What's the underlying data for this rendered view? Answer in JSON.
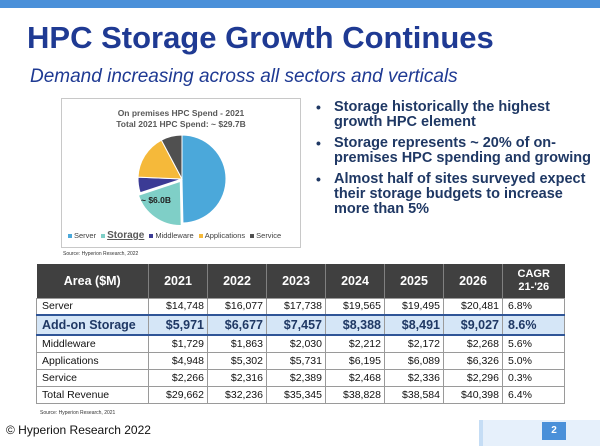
{
  "slide": {
    "title": "HPC Storage Growth Continues",
    "subtitle": "Demand increasing across all sectors and verticals"
  },
  "chart_data": {
    "type": "pie",
    "title": "On premises HPC Spend - 2021",
    "subtitle": "Total 2021 HPC Spend: ~ $29.7B",
    "categories": [
      "Server",
      "Storage",
      "Middleware",
      "Applications",
      "Service"
    ],
    "values": [
      14.7,
      6.0,
      1.7,
      4.9,
      2.3
    ],
    "colors": [
      "#4ba8da",
      "#7fcfc7",
      "#3b3b95",
      "#f5b93a",
      "#505050"
    ],
    "annotation": "~ $6.0B",
    "legend_position": "bottom"
  },
  "source_chart": "Source: Hyperion Research, 2022",
  "bullets": [
    "Storage historically the highest growth HPC element",
    "Storage represents ~ 20% of on-premises HPC spending and growing",
    "Almost half of sites surveyed expect their storage budgets to increase more than 5%"
  ],
  "table": {
    "headers": [
      "Area ($M)",
      "2021",
      "2022",
      "2023",
      "2024",
      "2025",
      "2026"
    ],
    "cagr_header": [
      "CAGR",
      "21-'26"
    ],
    "rows": [
      {
        "area": "Server",
        "values": [
          "$14,748",
          "$16,077",
          "$17,738",
          "$19,565",
          "$19,495",
          "$20,481"
        ],
        "cagr": "6.8%",
        "highlight": false
      },
      {
        "area": "Add-on Storage",
        "values": [
          "$5,971",
          "$6,677",
          "$7,457",
          "$8,388",
          "$8,491",
          "$9,027"
        ],
        "cagr": "8.6%",
        "highlight": true
      },
      {
        "area": "Middleware",
        "values": [
          "$1,729",
          "$1,863",
          "$2,030",
          "$2,212",
          "$2,172",
          "$2,268"
        ],
        "cagr": "5.6%",
        "highlight": false
      },
      {
        "area": "Applications",
        "values": [
          "$4,948",
          "$5,302",
          "$5,731",
          "$6,195",
          "$6,089",
          "$6,326"
        ],
        "cagr": "5.0%",
        "highlight": false
      },
      {
        "area": "Service",
        "values": [
          "$2,266",
          "$2,316",
          "$2,389",
          "$2,468",
          "$2,336",
          "$2,296"
        ],
        "cagr": "0.3%",
        "highlight": false
      },
      {
        "area": "Total Revenue",
        "values": [
          "$29,662",
          "$32,236",
          "$35,345",
          "$38,828",
          "$38,584",
          "$40,398"
        ],
        "cagr": "6.4%",
        "highlight": false
      }
    ]
  },
  "source_table": "Source: Hyperion Research, 2021",
  "footer": {
    "copyright": "© Hyperion Research 2022",
    "page_number": "2"
  }
}
